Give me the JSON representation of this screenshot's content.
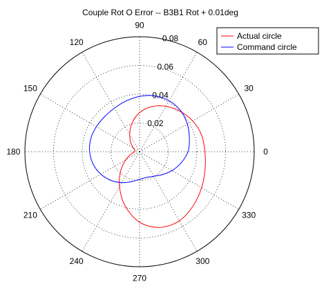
{
  "chart_data": {
    "type": "polar",
    "title": "Couple Rot O Error -- B3B1 Rot + 0.01deg",
    "angle_unit": "deg",
    "angle_ticks": [
      0,
      30,
      60,
      90,
      120,
      150,
      180,
      210,
      240,
      270,
      300,
      330
    ],
    "angle_tick_labels": [
      "0",
      "30",
      "60",
      "90",
      "120",
      "150",
      "180",
      "210",
      "240",
      "270",
      "300",
      "330"
    ],
    "rlim": [
      0,
      0.08
    ],
    "radial_ticks": [
      0.02,
      0.04,
      0.06,
      0.08
    ],
    "radial_tick_labels": [
      "0.02",
      "0.04",
      "0.06",
      "0.08"
    ],
    "grid": true,
    "legend_position": "top-right",
    "series": [
      {
        "name": "Actual circle",
        "color": "#ff0000",
        "theta": [
          0,
          15,
          30,
          45,
          60,
          75,
          90,
          105,
          120,
          135,
          150,
          165,
          180,
          195,
          210,
          225,
          240,
          255,
          270,
          285,
          300,
          315,
          330,
          345,
          360
        ],
        "r": [
          0.0456,
          0.0448,
          0.0428,
          0.0398,
          0.0365,
          0.0325,
          0.0272,
          0.0205,
          0.0138,
          0.0085,
          0.0048,
          0.0033,
          0.0035,
          0.006,
          0.011,
          0.0185,
          0.028,
          0.039,
          0.049,
          0.0545,
          0.0555,
          0.053,
          0.05,
          0.0473,
          0.0456
        ]
      },
      {
        "name": "Command circle",
        "color": "#0000ff",
        "theta": [
          0,
          15,
          30,
          45,
          60,
          75,
          90,
          105,
          120,
          135,
          150,
          165,
          180,
          195,
          210,
          225,
          240,
          255,
          270,
          285,
          300,
          315,
          330,
          345,
          360
        ],
        "r": [
          0.0338,
          0.036,
          0.0385,
          0.0405,
          0.041,
          0.0403,
          0.0385,
          0.0365,
          0.035,
          0.0345,
          0.0348,
          0.0352,
          0.0348,
          0.0335,
          0.0312,
          0.0282,
          0.0248,
          0.0215,
          0.0192,
          0.0185,
          0.0197,
          0.0225,
          0.0262,
          0.03,
          0.0338
        ]
      }
    ]
  }
}
